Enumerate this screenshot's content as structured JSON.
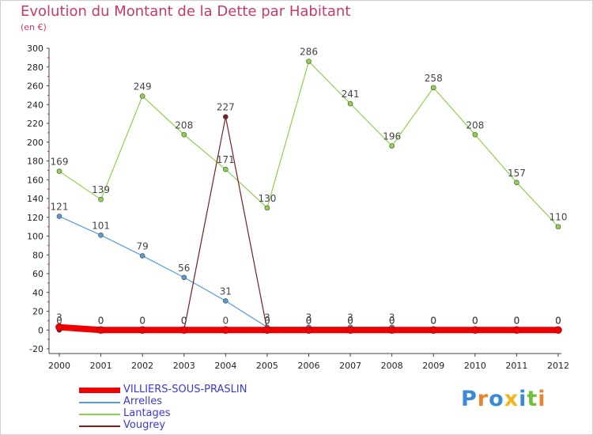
{
  "header": {
    "title": "Evolution du Montant de la Dette par Habitant",
    "unit": "(en €)"
  },
  "chart_data": {
    "type": "line",
    "title": "Evolution du Montant de la Dette par Habitant",
    "subtitle": "(en €)",
    "x": [
      "2000",
      "2001",
      "2002",
      "2003",
      "2004",
      "2005",
      "2006",
      "2007",
      "2008",
      "2009",
      "2010",
      "2011",
      "2012"
    ],
    "ylim": [
      -20,
      300
    ],
    "yticks": [
      -20,
      0,
      20,
      40,
      60,
      80,
      100,
      120,
      140,
      160,
      180,
      200,
      220,
      240,
      260,
      280,
      300
    ],
    "grid": false,
    "legend_position": "bottom-left",
    "series": [
      {
        "name": "VILLIERS-SOUS-PRASLIN",
        "color": "#ee0000",
        "values": [
          3,
          0,
          0,
          0,
          0,
          0,
          0,
          0,
          0,
          0,
          0,
          0,
          0
        ]
      },
      {
        "name": "Arrelles",
        "color": "#5b9bd5",
        "values": [
          121,
          101,
          79,
          56,
          31,
          3,
          3,
          3,
          3,
          0,
          0,
          0,
          0
        ]
      },
      {
        "name": "Lantages",
        "color": "#8ed14b",
        "values": [
          169,
          139,
          249,
          208,
          171,
          130,
          286,
          241,
          196,
          258,
          208,
          157,
          110
        ]
      },
      {
        "name": "Vougrey",
        "color": "#7a1f1f",
        "values": [
          0,
          0,
          0,
          0,
          227,
          0,
          0,
          0,
          0,
          0,
          0,
          0,
          0
        ]
      }
    ]
  },
  "legend": {
    "items": [
      {
        "label": "VILLIERS-SOUS-PRASLIN",
        "color": "#ee0000"
      },
      {
        "label": "Arrelles",
        "color": "#5b9bd5"
      },
      {
        "label": "Lantages",
        "color": "#8ed14b"
      },
      {
        "label": "Vougrey",
        "color": "#7a1f1f"
      }
    ]
  },
  "logo": {
    "text": "Proxiti",
    "letters": [
      {
        "ch": "P",
        "color": "#3a8ad8"
      },
      {
        "ch": "r",
        "color": "#e8842b"
      },
      {
        "ch": "o",
        "color": "#3a8ad8"
      },
      {
        "ch": "x",
        "color": "#f2b51b"
      },
      {
        "ch": "i",
        "color": "#3a8ad8"
      },
      {
        "ch": "t",
        "color": "#6fc13b"
      },
      {
        "ch": "i",
        "color": "#e8842b"
      }
    ]
  }
}
